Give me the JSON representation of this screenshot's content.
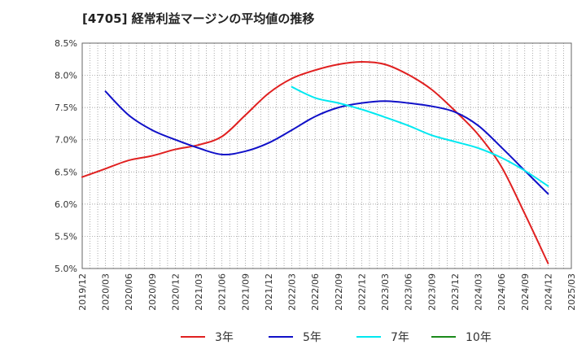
{
  "chart_data": {
    "type": "line",
    "title": "[4705]  経常利益マージンの平均値の推移",
    "xlabel": "",
    "ylabel": "",
    "ylim": [
      5.0,
      8.5
    ],
    "xlim": [
      "2019/12",
      "2025/03"
    ],
    "grid": true,
    "legend_position": "bottom",
    "y_ticks": [
      "5.0%",
      "5.5%",
      "6.0%",
      "6.5%",
      "7.0%",
      "7.5%",
      "8.0%",
      "8.5%"
    ],
    "x_ticks": [
      "2019/12",
      "2020/03",
      "2020/06",
      "2020/09",
      "2020/12",
      "2021/03",
      "2021/06",
      "2021/09",
      "2021/12",
      "2022/03",
      "2022/06",
      "2022/09",
      "2022/12",
      "2023/03",
      "2023/06",
      "2023/09",
      "2023/12",
      "2024/03",
      "2024/06",
      "2024/09",
      "2024/12",
      "2025/03"
    ],
    "series": [
      {
        "name": "3年",
        "color": "#e02020",
        "x": [
          "2019/12",
          "2020/03",
          "2020/06",
          "2020/09",
          "2020/12",
          "2021/03",
          "2021/06",
          "2021/09",
          "2021/12",
          "2022/03",
          "2022/06",
          "2022/09",
          "2022/12",
          "2023/03",
          "2023/06",
          "2023/09",
          "2023/12",
          "2024/03",
          "2024/06",
          "2024/09",
          "2024/12"
        ],
        "values": [
          6.42,
          6.55,
          6.68,
          6.75,
          6.85,
          6.92,
          7.05,
          7.38,
          7.72,
          7.95,
          8.08,
          8.17,
          8.21,
          8.17,
          8.01,
          7.78,
          7.45,
          7.08,
          6.58,
          5.85,
          5.08
        ]
      },
      {
        "name": "5年",
        "color": "#1010c8",
        "x": [
          "2020/03",
          "2020/06",
          "2020/09",
          "2020/12",
          "2021/03",
          "2021/06",
          "2021/09",
          "2021/12",
          "2022/03",
          "2022/06",
          "2022/09",
          "2022/12",
          "2023/03",
          "2023/06",
          "2023/09",
          "2023/12",
          "2024/03",
          "2024/06",
          "2024/09",
          "2024/12"
        ],
        "values": [
          7.75,
          7.38,
          7.15,
          7.0,
          6.87,
          6.77,
          6.82,
          6.95,
          7.15,
          7.36,
          7.5,
          7.57,
          7.6,
          7.57,
          7.52,
          7.43,
          7.22,
          6.88,
          6.52,
          6.16
        ]
      },
      {
        "name": "7年",
        "color": "#00e8f0",
        "x": [
          "2022/03",
          "2022/06",
          "2022/09",
          "2022/12",
          "2023/03",
          "2023/06",
          "2023/09",
          "2023/12",
          "2024/03",
          "2024/06",
          "2024/09",
          "2024/12"
        ],
        "values": [
          7.82,
          7.65,
          7.57,
          7.47,
          7.35,
          7.22,
          7.07,
          6.97,
          6.87,
          6.72,
          6.52,
          6.28
        ]
      },
      {
        "name": "10年",
        "color": "#1a8a1a",
        "x": [],
        "values": []
      }
    ]
  }
}
